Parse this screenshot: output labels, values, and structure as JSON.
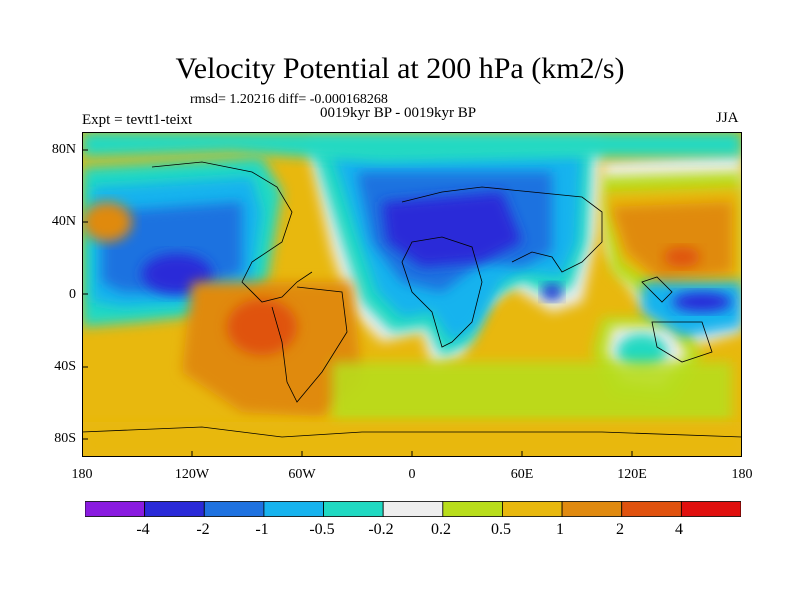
{
  "title": "Velocity Potential at 200 hPa (km2/s)",
  "stats": "rmsd= 1.20216 diff= -0.000168268",
  "period": "0019kyr BP - 0019kyr BP",
  "experiment": "Expt = tevtt1-teixt",
  "season": "JJA",
  "lat_labels": [
    "80N",
    "40N",
    "0",
    "40S",
    "80S"
  ],
  "lon_labels": [
    "180",
    "120W",
    "60W",
    "0",
    "60E",
    "120E",
    "180"
  ],
  "colorbar": {
    "labels": [
      "-4",
      "-2",
      "-1",
      "-0.5",
      "-0.2",
      "0.2",
      "0.5",
      "1",
      "2",
      "4"
    ],
    "colors": [
      "#8a1be0",
      "#2a2ad8",
      "#1f72e0",
      "#17b3ee",
      "#20d9c2",
      "#eeeeee",
      "#b8dd1b",
      "#e8b80e",
      "#e08a10",
      "#e0520e",
      "#e0100e"
    ]
  }
}
